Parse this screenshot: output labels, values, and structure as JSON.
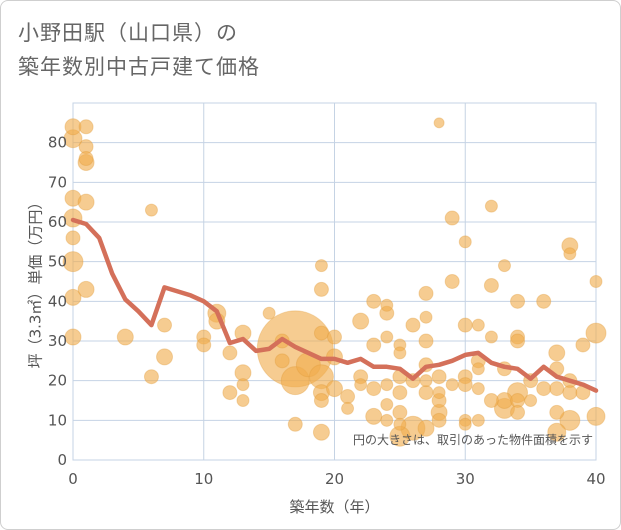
{
  "chart_data": {
    "type": "scatter",
    "title_line1": "小野田駅（山口県）の",
    "title_line2": "築年数別中古戸建て価格",
    "xlabel": "築年数（年）",
    "ylabel": "坪（3.3㎡）単価（万円）",
    "xlim": [
      0,
      40
    ],
    "ylim": [
      0,
      90
    ],
    "xticks": [
      0,
      10,
      20,
      30,
      40
    ],
    "yticks": [
      0,
      10,
      20,
      30,
      40,
      50,
      60,
      70,
      80
    ],
    "grid": true,
    "note": "円の大きさは、取引のあった物件面積を示す",
    "colors": {
      "bubble": "#f0ad4e",
      "line": "#d4705a",
      "grid": "#c5d3e4"
    },
    "series": [
      {
        "name": "trend",
        "type": "line",
        "x": [
          0,
          1,
          2,
          3,
          4,
          5,
          6,
          7,
          8,
          9,
          10,
          11,
          12,
          13,
          14,
          15,
          16,
          17,
          18,
          19,
          20,
          21,
          22,
          23,
          24,
          25,
          26,
          27,
          28,
          29,
          30,
          31,
          32,
          33,
          34,
          35,
          36,
          37,
          38,
          39,
          40
        ],
        "y": [
          60.5,
          59.5,
          56,
          47,
          40.5,
          37.5,
          34,
          43.5,
          42.5,
          41.5,
          40,
          37.5,
          29.5,
          30.5,
          27.5,
          28,
          30.5,
          28.5,
          27,
          25.5,
          25.5,
          24.5,
          25.5,
          23.5,
          23.5,
          23,
          20.5,
          23.5,
          24,
          25,
          26.5,
          27,
          24.5,
          23.5,
          23,
          20.5,
          23.5,
          21,
          20,
          19,
          17.5
        ]
      },
      {
        "name": "transactions",
        "type": "bubble",
        "points": [
          {
            "x": 0,
            "y": 84,
            "s": 8
          },
          {
            "x": 0,
            "y": 81,
            "s": 9
          },
          {
            "x": 0,
            "y": 66,
            "s": 8
          },
          {
            "x": 0,
            "y": 61,
            "s": 9
          },
          {
            "x": 0,
            "y": 56,
            "s": 7
          },
          {
            "x": 0,
            "y": 50,
            "s": 10
          },
          {
            "x": 0,
            "y": 41,
            "s": 8
          },
          {
            "x": 0,
            "y": 31,
            "s": 8
          },
          {
            "x": 1,
            "y": 84,
            "s": 7
          },
          {
            "x": 1,
            "y": 79,
            "s": 7
          },
          {
            "x": 1,
            "y": 76,
            "s": 7
          },
          {
            "x": 1,
            "y": 75,
            "s": 8
          },
          {
            "x": 1,
            "y": 65,
            "s": 8
          },
          {
            "x": 1,
            "y": 43,
            "s": 8
          },
          {
            "x": 4,
            "y": 31,
            "s": 8
          },
          {
            "x": 6,
            "y": 63,
            "s": 6
          },
          {
            "x": 6,
            "y": 21,
            "s": 7
          },
          {
            "x": 7,
            "y": 34,
            "s": 7
          },
          {
            "x": 7,
            "y": 26,
            "s": 8
          },
          {
            "x": 10,
            "y": 31,
            "s": 7
          },
          {
            "x": 10,
            "y": 29,
            "s": 7
          },
          {
            "x": 11,
            "y": 37,
            "s": 9
          },
          {
            "x": 11,
            "y": 35,
            "s": 8
          },
          {
            "x": 12,
            "y": 27,
            "s": 7
          },
          {
            "x": 12,
            "y": 17,
            "s": 7
          },
          {
            "x": 13,
            "y": 32,
            "s": 8
          },
          {
            "x": 13,
            "y": 22,
            "s": 8
          },
          {
            "x": 13,
            "y": 19,
            "s": 6
          },
          {
            "x": 13,
            "y": 15,
            "s": 6
          },
          {
            "x": 15,
            "y": 37,
            "s": 6
          },
          {
            "x": 16,
            "y": 30,
            "s": 7
          },
          {
            "x": 16,
            "y": 25,
            "s": 7
          },
          {
            "x": 17,
            "y": 28,
            "s": 38
          },
          {
            "x": 17,
            "y": 20,
            "s": 14
          },
          {
            "x": 17,
            "y": 9,
            "s": 7
          },
          {
            "x": 18,
            "y": 24,
            "s": 12
          },
          {
            "x": 19,
            "y": 49,
            "s": 6
          },
          {
            "x": 19,
            "y": 43,
            "s": 7
          },
          {
            "x": 19,
            "y": 32,
            "s": 7
          },
          {
            "x": 19,
            "y": 21,
            "s": 12
          },
          {
            "x": 19,
            "y": 17,
            "s": 8
          },
          {
            "x": 19,
            "y": 15,
            "s": 7
          },
          {
            "x": 19,
            "y": 7,
            "s": 8
          },
          {
            "x": 20,
            "y": 31,
            "s": 7
          },
          {
            "x": 20,
            "y": 26,
            "s": 8
          },
          {
            "x": 20,
            "y": 18,
            "s": 8
          },
          {
            "x": 21,
            "y": 16,
            "s": 7
          },
          {
            "x": 21,
            "y": 13,
            "s": 6
          },
          {
            "x": 22,
            "y": 35,
            "s": 8
          },
          {
            "x": 22,
            "y": 21,
            "s": 7
          },
          {
            "x": 22,
            "y": 19,
            "s": 6
          },
          {
            "x": 23,
            "y": 40,
            "s": 7
          },
          {
            "x": 23,
            "y": 29,
            "s": 7
          },
          {
            "x": 23,
            "y": 18,
            "s": 7
          },
          {
            "x": 23,
            "y": 11,
            "s": 8
          },
          {
            "x": 24,
            "y": 39,
            "s": 6
          },
          {
            "x": 24,
            "y": 37,
            "s": 7
          },
          {
            "x": 24,
            "y": 31,
            "s": 6
          },
          {
            "x": 24,
            "y": 19,
            "s": 6
          },
          {
            "x": 24,
            "y": 14,
            "s": 6
          },
          {
            "x": 24,
            "y": 10,
            "s": 6
          },
          {
            "x": 25,
            "y": 29,
            "s": 6
          },
          {
            "x": 25,
            "y": 27,
            "s": 6
          },
          {
            "x": 25,
            "y": 21,
            "s": 7
          },
          {
            "x": 25,
            "y": 17,
            "s": 7
          },
          {
            "x": 25,
            "y": 12,
            "s": 7
          },
          {
            "x": 25,
            "y": 9,
            "s": 6
          },
          {
            "x": 25,
            "y": 6,
            "s": 10
          },
          {
            "x": 26,
            "y": 34,
            "s": 7
          },
          {
            "x": 26,
            "y": 20,
            "s": 7
          },
          {
            "x": 26,
            "y": 8,
            "s": 12
          },
          {
            "x": 27,
            "y": 42,
            "s": 7
          },
          {
            "x": 27,
            "y": 36,
            "s": 6
          },
          {
            "x": 27,
            "y": 30,
            "s": 7
          },
          {
            "x": 27,
            "y": 24,
            "s": 7
          },
          {
            "x": 27,
            "y": 20,
            "s": 6
          },
          {
            "x": 27,
            "y": 17,
            "s": 7
          },
          {
            "x": 27,
            "y": 8,
            "s": 8
          },
          {
            "x": 28,
            "y": 85,
            "s": 5
          },
          {
            "x": 28,
            "y": 21,
            "s": 7
          },
          {
            "x": 28,
            "y": 17,
            "s": 6
          },
          {
            "x": 28,
            "y": 15,
            "s": 7
          },
          {
            "x": 28,
            "y": 12,
            "s": 8
          },
          {
            "x": 28,
            "y": 10,
            "s": 7
          },
          {
            "x": 29,
            "y": 61,
            "s": 7
          },
          {
            "x": 29,
            "y": 45,
            "s": 7
          },
          {
            "x": 29,
            "y": 19,
            "s": 6
          },
          {
            "x": 30,
            "y": 55,
            "s": 6
          },
          {
            "x": 30,
            "y": 34,
            "s": 7
          },
          {
            "x": 30,
            "y": 21,
            "s": 7
          },
          {
            "x": 30,
            "y": 19,
            "s": 7
          },
          {
            "x": 30,
            "y": 10,
            "s": 6
          },
          {
            "x": 30,
            "y": 9,
            "s": 6
          },
          {
            "x": 31,
            "y": 34,
            "s": 6
          },
          {
            "x": 31,
            "y": 25,
            "s": 7
          },
          {
            "x": 31,
            "y": 23,
            "s": 6
          },
          {
            "x": 31,
            "y": 18,
            "s": 6
          },
          {
            "x": 31,
            "y": 10,
            "s": 6
          },
          {
            "x": 32,
            "y": 64,
            "s": 6
          },
          {
            "x": 32,
            "y": 44,
            "s": 7
          },
          {
            "x": 32,
            "y": 31,
            "s": 6
          },
          {
            "x": 32,
            "y": 15,
            "s": 7
          },
          {
            "x": 33,
            "y": 49,
            "s": 6
          },
          {
            "x": 33,
            "y": 23,
            "s": 7
          },
          {
            "x": 33,
            "y": 15,
            "s": 8
          },
          {
            "x": 33,
            "y": 13,
            "s": 10
          },
          {
            "x": 34,
            "y": 40,
            "s": 7
          },
          {
            "x": 34,
            "y": 31,
            "s": 7
          },
          {
            "x": 34,
            "y": 30,
            "s": 7
          },
          {
            "x": 34,
            "y": 17,
            "s": 10
          },
          {
            "x": 34,
            "y": 15,
            "s": 7
          },
          {
            "x": 34,
            "y": 12,
            "s": 7
          },
          {
            "x": 35,
            "y": 20,
            "s": 7
          },
          {
            "x": 35,
            "y": 15,
            "s": 6
          },
          {
            "x": 36,
            "y": 40,
            "s": 7
          },
          {
            "x": 36,
            "y": 18,
            "s": 7
          },
          {
            "x": 37,
            "y": 27,
            "s": 8
          },
          {
            "x": 37,
            "y": 23,
            "s": 7
          },
          {
            "x": 37,
            "y": 18,
            "s": 7
          },
          {
            "x": 37,
            "y": 12,
            "s": 7
          },
          {
            "x": 37,
            "y": 7,
            "s": 9
          },
          {
            "x": 38,
            "y": 54,
            "s": 8
          },
          {
            "x": 38,
            "y": 52,
            "s": 6
          },
          {
            "x": 38,
            "y": 20,
            "s": 7
          },
          {
            "x": 38,
            "y": 17,
            "s": 7
          },
          {
            "x": 38,
            "y": 10,
            "s": 10
          },
          {
            "x": 39,
            "y": 29,
            "s": 7
          },
          {
            "x": 39,
            "y": 17,
            "s": 7
          },
          {
            "x": 40,
            "y": 45,
            "s": 6
          },
          {
            "x": 40,
            "y": 32,
            "s": 10
          },
          {
            "x": 40,
            "y": 11,
            "s": 9
          }
        ]
      }
    ]
  }
}
